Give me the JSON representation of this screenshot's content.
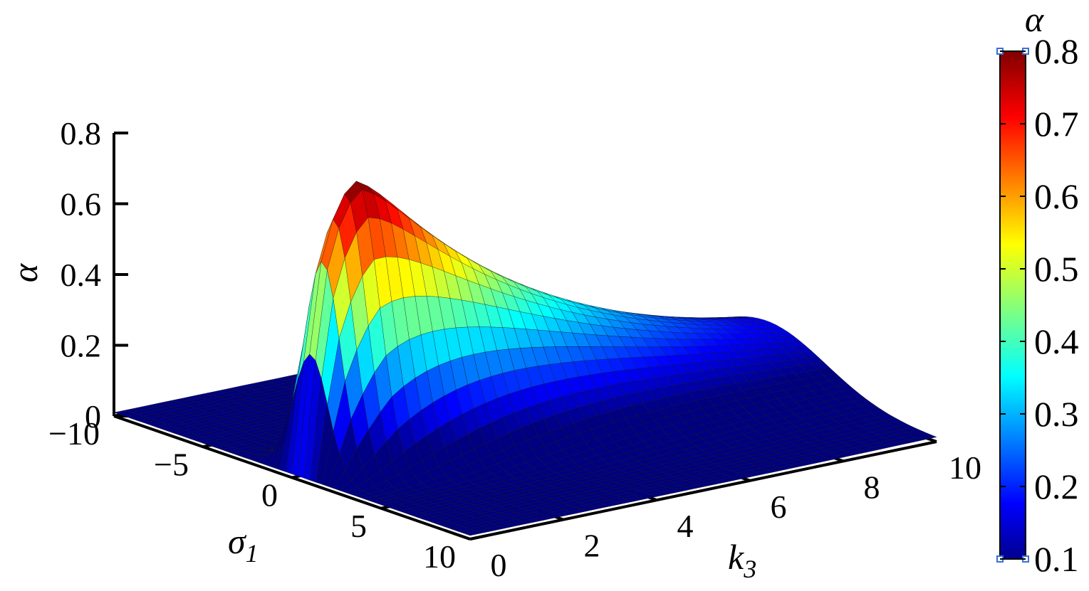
{
  "chart_data": {
    "type": "surface",
    "title": "",
    "colormap": "jet",
    "x_axis": {
      "label": "k",
      "label_subscript": "3",
      "range": [
        0,
        10
      ],
      "ticks": [
        0,
        2,
        4,
        6,
        8,
        10
      ],
      "tick_labels": [
        "0",
        "2",
        "4",
        "6",
        "8",
        "10"
      ]
    },
    "y_axis": {
      "label": "σ",
      "label_subscript": "1",
      "range": [
        -10,
        10
      ],
      "ticks": [
        -10,
        -5,
        0,
        5,
        10
      ],
      "tick_labels": [
        "−10",
        "−5",
        "0",
        "5",
        "10"
      ]
    },
    "z_axis": {
      "label": "α",
      "range": [
        0,
        0.8
      ],
      "ticks": [
        0,
        0.2,
        0.4,
        0.6,
        0.8
      ],
      "tick_labels": [
        "0",
        "0.2",
        "0.4",
        "0.6",
        "0.8"
      ]
    },
    "colorbar": {
      "title": "α",
      "range": [
        0.1,
        0.8
      ],
      "tick_labels": [
        "0.1",
        "0.2",
        "0.3",
        "0.4",
        "0.5",
        "0.6",
        "0.7",
        "0.8"
      ]
    },
    "surface_description_points": [
      {
        "k3": 0.0,
        "sigma1": 0.0,
        "alpha": 0.0
      },
      {
        "k3": 1.0,
        "sigma1": 0.0,
        "alpha": 0.75
      },
      {
        "k3": 2.0,
        "sigma1": 0.0,
        "alpha": 0.75
      },
      {
        "k3": 3.0,
        "sigma1": 0.0,
        "alpha": 0.64
      },
      {
        "k3": 4.0,
        "sigma1": 0.0,
        "alpha": 0.55
      },
      {
        "k3": 6.0,
        "sigma1": 0.0,
        "alpha": 0.35
      },
      {
        "k3": 8.0,
        "sigma1": 0.0,
        "alpha": 0.22
      },
      {
        "k3": 10.0,
        "sigma1": 0.0,
        "alpha": 0.15
      }
    ]
  }
}
